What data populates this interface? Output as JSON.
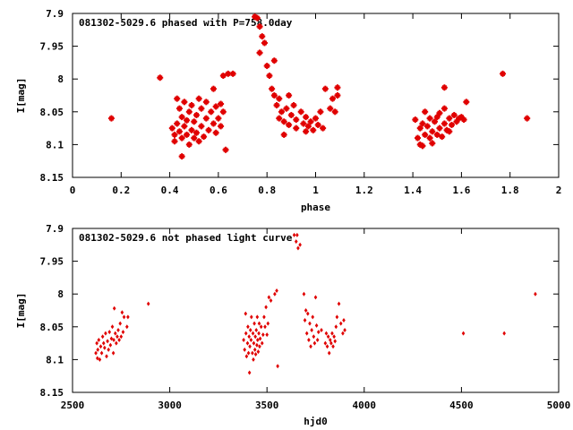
{
  "chart_data": [
    {
      "type": "scatter",
      "title": "081302-5029.6 phased with P=758.0day",
      "xlabel": "phase",
      "ylabel": "I[mag]",
      "xlim": [
        0,
        2
      ],
      "ylim": [
        7.9,
        8.15
      ],
      "y_inverted": true,
      "xticks": [
        "0",
        "0.2",
        "0.4",
        "0.6",
        "0.8",
        "1",
        "1.2",
        "1.4",
        "1.6",
        "1.8",
        "2"
      ],
      "yticks": [
        "7.9",
        "7.95",
        "8",
        "8.05",
        "8.1",
        "8.15"
      ],
      "color": "#e00000",
      "marker": "asterisk",
      "points": [
        [
          0.16,
          8.06
        ],
        [
          0.36,
          7.998
        ],
        [
          0.41,
          8.075
        ],
        [
          0.42,
          8.085
        ],
        [
          0.42,
          8.095
        ],
        [
          0.43,
          8.03
        ],
        [
          0.43,
          8.068
        ],
        [
          0.44,
          8.045
        ],
        [
          0.44,
          8.08
        ],
        [
          0.45,
          8.058
        ],
        [
          0.45,
          8.09
        ],
        [
          0.45,
          8.118
        ],
        [
          0.46,
          8.035
        ],
        [
          0.46,
          8.072
        ],
        [
          0.47,
          8.063
        ],
        [
          0.47,
          8.085
        ],
        [
          0.48,
          8.1
        ],
        [
          0.48,
          8.05
        ],
        [
          0.49,
          8.078
        ],
        [
          0.49,
          8.04
        ],
        [
          0.5,
          8.09
        ],
        [
          0.5,
          8.065
        ],
        [
          0.51,
          8.082
        ],
        [
          0.51,
          8.055
        ],
        [
          0.52,
          8.095
        ],
        [
          0.52,
          8.03
        ],
        [
          0.53,
          8.072
        ],
        [
          0.53,
          8.045
        ],
        [
          0.54,
          8.088
        ],
        [
          0.55,
          8.06
        ],
        [
          0.55,
          8.035
        ],
        [
          0.56,
          8.078
        ],
        [
          0.57,
          8.05
        ],
        [
          0.58,
          8.068
        ],
        [
          0.58,
          8.015
        ],
        [
          0.59,
          8.042
        ],
        [
          0.59,
          8.082
        ],
        [
          0.6,
          8.06
        ],
        [
          0.61,
          8.038
        ],
        [
          0.61,
          8.072
        ],
        [
          0.62,
          7.995
        ],
        [
          0.62,
          8.05
        ],
        [
          0.63,
          8.108
        ],
        [
          0.64,
          7.992
        ],
        [
          0.66,
          7.992
        ],
        [
          0.75,
          7.905
        ],
        [
          0.76,
          7.907
        ],
        [
          0.77,
          7.92
        ],
        [
          0.77,
          7.96
        ],
        [
          0.78,
          7.935
        ],
        [
          0.79,
          7.945
        ],
        [
          0.8,
          7.98
        ],
        [
          0.81,
          7.995
        ],
        [
          0.82,
          8.015
        ],
        [
          0.83,
          8.025
        ],
        [
          0.83,
          7.972
        ],
        [
          0.84,
          8.04
        ],
        [
          0.85,
          8.06
        ],
        [
          0.85,
          8.03
        ],
        [
          0.86,
          8.05
        ],
        [
          0.87,
          8.085
        ],
        [
          0.87,
          8.065
        ],
        [
          0.88,
          8.045
        ],
        [
          0.89,
          8.07
        ],
        [
          0.89,
          8.025
        ],
        [
          0.9,
          8.055
        ],
        [
          0.91,
          8.04
        ],
        [
          0.92,
          8.075
        ],
        [
          0.92,
          8.062
        ],
        [
          0.94,
          8.05
        ],
        [
          0.95,
          8.068
        ],
        [
          0.96,
          8.08
        ],
        [
          0.96,
          8.058
        ],
        [
          0.97,
          8.072
        ],
        [
          0.98,
          8.065
        ],
        [
          0.99,
          8.078
        ],
        [
          1.0,
          8.06
        ],
        [
          1.01,
          8.07
        ],
        [
          1.02,
          8.05
        ],
        [
          1.03,
          8.075
        ],
        [
          1.04,
          8.015
        ],
        [
          1.06,
          8.045
        ],
        [
          1.07,
          8.03
        ],
        [
          1.08,
          8.05
        ],
        [
          1.09,
          8.025
        ],
        [
          1.09,
          8.013
        ],
        [
          1.41,
          8.062
        ],
        [
          1.42,
          8.09
        ],
        [
          1.43,
          8.075
        ],
        [
          1.43,
          8.1
        ],
        [
          1.44,
          8.068
        ],
        [
          1.44,
          8.102
        ],
        [
          1.45,
          8.085
        ],
        [
          1.45,
          8.05
        ],
        [
          1.46,
          8.072
        ],
        [
          1.47,
          8.09
        ],
        [
          1.47,
          8.06
        ],
        [
          1.48,
          8.08
        ],
        [
          1.48,
          8.098
        ],
        [
          1.49,
          8.065
        ],
        [
          1.5,
          8.085
        ],
        [
          1.5,
          8.058
        ],
        [
          1.51,
          8.075
        ],
        [
          1.51,
          8.052
        ],
        [
          1.52,
          8.088
        ],
        [
          1.53,
          8.068
        ],
        [
          1.53,
          8.045
        ],
        [
          1.54,
          8.078
        ],
        [
          1.55,
          8.06
        ],
        [
          1.55,
          8.08
        ],
        [
          1.56,
          8.07
        ],
        [
          1.57,
          8.055
        ],
        [
          1.58,
          8.065
        ],
        [
          1.59,
          8.06
        ],
        [
          1.6,
          8.058
        ],
        [
          1.61,
          8.062
        ],
        [
          1.53,
          8.013
        ],
        [
          1.62,
          8.035
        ],
        [
          1.77,
          7.992
        ],
        [
          1.87,
          8.06
        ]
      ]
    },
    {
      "type": "scatter",
      "title": "081302-5029.6 not phased light curve",
      "xlabel": "hjd0",
      "ylabel": "I[mag]",
      "xlim": [
        2500,
        5000
      ],
      "ylim": [
        7.9,
        8.15
      ],
      "y_inverted": true,
      "xticks": [
        "2500",
        "3000",
        "3500",
        "4000",
        "4500",
        "5000"
      ],
      "yticks": [
        "7.9",
        "7.95",
        "8",
        "8.05",
        "8.1",
        "8.15"
      ],
      "color": "#e00000",
      "marker": "diamond",
      "points": [
        [
          2620,
          8.09
        ],
        [
          2625,
          8.075
        ],
        [
          2628,
          8.098
        ],
        [
          2630,
          8.085
        ],
        [
          2635,
          8.07
        ],
        [
          2640,
          8.1
        ],
        [
          2645,
          8.08
        ],
        [
          2650,
          8.09
        ],
        [
          2655,
          8.065
        ],
        [
          2660,
          8.075
        ],
        [
          2665,
          8.082
        ],
        [
          2670,
          8.06
        ],
        [
          2675,
          8.095
        ],
        [
          2680,
          8.072
        ],
        [
          2685,
          8.085
        ],
        [
          2690,
          8.058
        ],
        [
          2695,
          8.078
        ],
        [
          2700,
          8.068
        ],
        [
          2705,
          8.05
        ],
        [
          2710,
          8.09
        ],
        [
          2712,
          8.07
        ],
        [
          2715,
          8.022
        ],
        [
          2720,
          8.06
        ],
        [
          2725,
          8.075
        ],
        [
          2730,
          8.065
        ],
        [
          2735,
          8.055
        ],
        [
          2740,
          8.07
        ],
        [
          2745,
          8.045
        ],
        [
          2750,
          8.065
        ],
        [
          2755,
          8.028
        ],
        [
          2760,
          8.058
        ],
        [
          2765,
          8.035
        ],
        [
          2780,
          8.05
        ],
        [
          2785,
          8.035
        ],
        [
          2890,
          8.015
        ],
        [
          3380,
          8.07
        ],
        [
          3385,
          8.085
        ],
        [
          3390,
          8.03
        ],
        [
          3392,
          8.06
        ],
        [
          3395,
          8.095
        ],
        [
          3400,
          8.075
        ],
        [
          3402,
          8.05
        ],
        [
          3405,
          8.09
        ],
        [
          3408,
          8.065
        ],
        [
          3410,
          8.12
        ],
        [
          3412,
          8.08
        ],
        [
          3415,
          8.055
        ],
        [
          3418,
          8.07
        ],
        [
          3420,
          8.035
        ],
        [
          3425,
          8.09
        ],
        [
          3428,
          8.06
        ],
        [
          3430,
          8.1
        ],
        [
          3432,
          8.075
        ],
        [
          3435,
          8.045
        ],
        [
          3438,
          8.085
        ],
        [
          3440,
          8.065
        ],
        [
          3442,
          8.092
        ],
        [
          3445,
          8.055
        ],
        [
          3448,
          8.078
        ],
        [
          3450,
          8.035
        ],
        [
          3452,
          8.07
        ],
        [
          3455,
          8.088
        ],
        [
          3458,
          8.06
        ],
        [
          3460,
          8.045
        ],
        [
          3462,
          8.08
        ],
        [
          3465,
          8.068
        ],
        [
          3470,
          8.05
        ],
        [
          3475,
          8.075
        ],
        [
          3480,
          8.062
        ],
        [
          3485,
          8.035
        ],
        [
          3490,
          8.05
        ],
        [
          3495,
          8.02
        ],
        [
          3500,
          8.062
        ],
        [
          3505,
          8.045
        ],
        [
          3510,
          8.005
        ],
        [
          3520,
          8.01
        ],
        [
          3540,
          8.0
        ],
        [
          3550,
          7.995
        ],
        [
          3555,
          8.11
        ],
        [
          3640,
          7.91
        ],
        [
          3650,
          7.92
        ],
        [
          3655,
          7.91
        ],
        [
          3660,
          7.93
        ],
        [
          3670,
          7.925
        ],
        [
          3690,
          8.0
        ],
        [
          3695,
          8.04
        ],
        [
          3700,
          8.025
        ],
        [
          3705,
          8.06
        ],
        [
          3710,
          8.03
        ],
        [
          3715,
          8.07
        ],
        [
          3720,
          8.045
        ],
        [
          3725,
          8.08
        ],
        [
          3730,
          8.055
        ],
        [
          3735,
          8.035
        ],
        [
          3740,
          8.065
        ],
        [
          3745,
          8.075
        ],
        [
          3750,
          8.005
        ],
        [
          3755,
          8.048
        ],
        [
          3760,
          8.07
        ],
        [
          3765,
          8.058
        ],
        [
          3780,
          8.055
        ],
        [
          3800,
          8.075
        ],
        [
          3805,
          8.06
        ],
        [
          3810,
          8.08
        ],
        [
          3815,
          8.065
        ],
        [
          3820,
          8.09
        ],
        [
          3825,
          8.07
        ],
        [
          3830,
          8.075
        ],
        [
          3835,
          8.06
        ],
        [
          3840,
          8.08
        ],
        [
          3845,
          8.065
        ],
        [
          3850,
          8.072
        ],
        [
          3855,
          8.05
        ],
        [
          3860,
          8.035
        ],
        [
          3870,
          8.015
        ],
        [
          3880,
          8.045
        ],
        [
          3890,
          8.06
        ],
        [
          3895,
          8.04
        ],
        [
          3900,
          8.055
        ],
        [
          4510,
          8.06
        ],
        [
          4720,
          8.06
        ],
        [
          4880,
          8.0
        ]
      ]
    }
  ]
}
